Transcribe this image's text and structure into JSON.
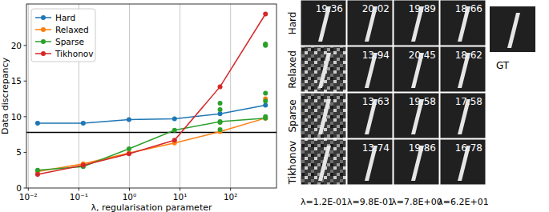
{
  "chart_data": {
    "type": "line",
    "x_label": "λ, regularisation parameter",
    "y_label": "Data discrepancy",
    "log": "x",
    "grid": true,
    "legend": "upper left",
    "marker": "circle",
    "x": [
      0.0153,
      0.122,
      0.98,
      7.8,
      62,
      490
    ],
    "xlim": [
      0.0092,
      810
    ],
    "xticks": [
      {
        "value": 0.01,
        "label": "10⁻²"
      },
      {
        "value": 0.1,
        "label": "10⁻¹"
      },
      {
        "value": 1,
        "label": "10⁰"
      },
      {
        "value": 10,
        "label": "10¹"
      },
      {
        "value": 100,
        "label": "10²"
      }
    ],
    "ylim": [
      0,
      25.8
    ],
    "yticks": [
      0,
      5,
      10,
      15,
      20
    ],
    "threshold": 7.8,
    "series": [
      {
        "name": "Hard",
        "color": "#1f77b4",
        "values": [
          9.1,
          9.1,
          9.6,
          9.7,
          10.4,
          11.6
        ]
      },
      {
        "name": "Relaxed",
        "color": "#ff7f0e",
        "values": [
          2.3,
          3.4,
          4.9,
          6.3,
          7.9,
          9.8
        ],
        "scatter_x": [
          490,
          490
        ],
        "scatter_y": [
          12.5,
          20.1
        ]
      },
      {
        "name": "Sparse",
        "color": "#2ca02c",
        "values": [
          2.5,
          3.0,
          5.5,
          8.1,
          9.3,
          9.8
        ],
        "scatter_x": [
          62,
          62,
          62,
          62,
          490,
          490,
          490,
          490,
          490
        ],
        "scatter_y": [
          8.2,
          9.2,
          11.0,
          11.9,
          10.0,
          12.2,
          13.3,
          20.0,
          20.2
        ]
      },
      {
        "name": "Tikhonov",
        "color": "#d62728",
        "values": [
          1.9,
          3.2,
          4.8,
          6.7,
          14.2,
          24.4
        ]
      }
    ]
  },
  "image_grid": {
    "rows": [
      {
        "label": "Hard",
        "psnr": [
          19.36,
          20.02,
          19.89,
          18.66
        ]
      },
      {
        "label": "Relaxed",
        "psnr": [
          null,
          13.94,
          20.45,
          18.62
        ]
      },
      {
        "label": "Sparse",
        "psnr": [
          null,
          13.63,
          19.58,
          17.58
        ]
      },
      {
        "label": "Tikhonov",
        "psnr": [
          null,
          13.74,
          19.86,
          16.78
        ]
      }
    ],
    "columns": [
      "λ=1.2E-01",
      "λ=9.8E-01",
      "λ=7.8E+00",
      "λ=6.2E+01"
    ],
    "gt_label": "GT"
  }
}
